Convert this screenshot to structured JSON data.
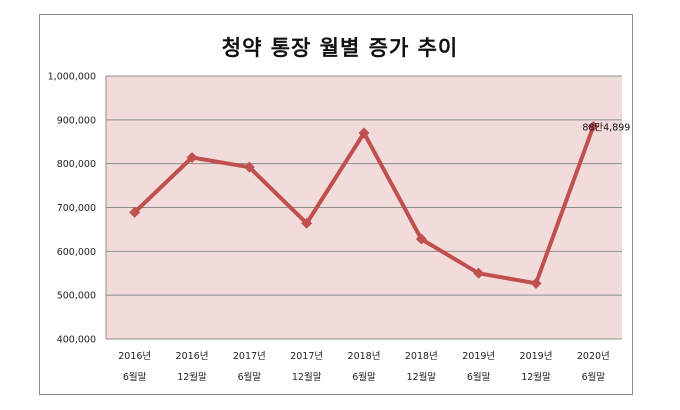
{
  "chart_data": {
    "type": "line",
    "title": "청약 통장 월별 증가 추이",
    "categories": [
      [
        "2016년",
        "6월말"
      ],
      [
        "2016년",
        "12월말"
      ],
      [
        "2017년",
        "6월말"
      ],
      [
        "2017년",
        "12월말"
      ],
      [
        "2018년",
        "6월말"
      ],
      [
        "2018년",
        "12월말"
      ],
      [
        "2019년",
        "6월말"
      ],
      [
        "2019년",
        "12월말"
      ],
      [
        "2020년",
        "6월말"
      ]
    ],
    "values": [
      689000,
      814000,
      792000,
      664000,
      870000,
      628000,
      550000,
      527000,
      884899
    ],
    "ylim": [
      400000,
      1000000
    ],
    "yticks": [
      400000,
      500000,
      600000,
      700000,
      800000,
      900000,
      1000000
    ],
    "ytick_labels": [
      "400,000",
      "500,000",
      "600,000",
      "700,000",
      "800,000",
      "900,000",
      "1,000,000"
    ],
    "data_labels": [
      {
        "index": 8,
        "text": "88만4,899"
      }
    ],
    "grid": true,
    "legend": "none",
    "colors": {
      "line": "#c0504d",
      "plot_background": "#f2dcdb",
      "grid": "#8c8c8c"
    }
  }
}
